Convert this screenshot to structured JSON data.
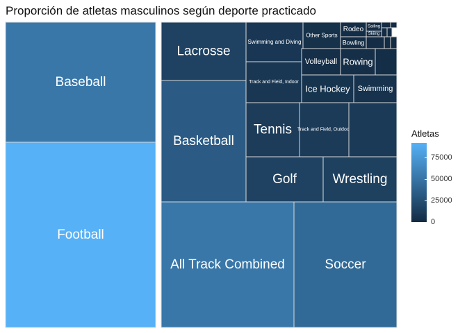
{
  "chart_data": {
    "type": "treemap",
    "title": "Proporción de atletas masculinos según deporte practicado",
    "color_scale": {
      "title": "Atletas",
      "low": "#132b43",
      "high": "#56b1f7",
      "ticks": [
        0,
        25000,
        50000,
        75000
      ],
      "tick_labels": [
        "0",
        "25000",
        "50000",
        "75000"
      ]
    },
    "items": [
      {
        "label": "Football",
        "value": 92000
      },
      {
        "label": "Baseball",
        "value": 52000
      },
      {
        "label": "All Track Combined",
        "value": 52000
      },
      {
        "label": "Soccer",
        "value": 43000
      },
      {
        "label": "Basketball",
        "value": 33000
      },
      {
        "label": "Lacrosse",
        "value": 16000
      },
      {
        "label": "Golf",
        "value": 16000
      },
      {
        "label": "Wrestling",
        "value": 15000
      },
      {
        "label": "Tennis",
        "value": 12000
      },
      {
        "label": "Track and Field, Outdoor",
        "value": 11000
      },
      {
        "label": "",
        "value": 10000
      },
      {
        "label": "Swimming and Diving",
        "value": 8500
      },
      {
        "label": "Track and Field, Indoor",
        "value": 8000
      },
      {
        "label": "Ice Hockey",
        "value": 6000
      },
      {
        "label": "Swimming",
        "value": 4500
      },
      {
        "label": "Other Sports",
        "value": 3800
      },
      {
        "label": "Volleyball",
        "value": 3000
      },
      {
        "label": "Rowing",
        "value": 2800
      },
      {
        "label": "",
        "value": 2000
      },
      {
        "label": "Rodeo",
        "value": 1500
      },
      {
        "label": "Bowling",
        "value": 1200
      },
      {
        "label": "",
        "value": 1000
      },
      {
        "label": "Sailing",
        "value": 700
      },
      {
        "label": "Skiing",
        "value": 600
      },
      {
        "label": "",
        "value": 400
      },
      {
        "label": "",
        "value": 300
      },
      {
        "label": "",
        "value": 250
      },
      {
        "label": "",
        "value": 200
      },
      {
        "label": "",
        "value": 150
      },
      {
        "label": "",
        "value": 100
      }
    ]
  }
}
